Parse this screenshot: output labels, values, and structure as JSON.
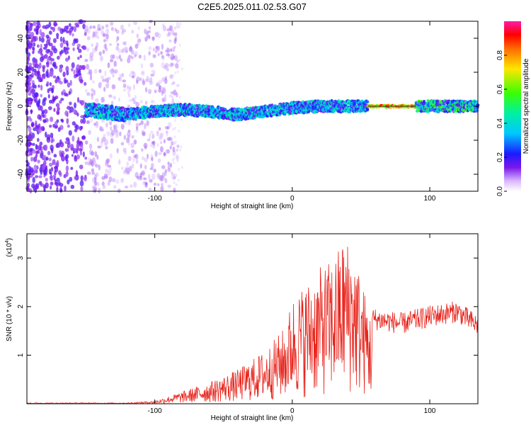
{
  "title": "C2E5.2025.011.02.53.G07",
  "chart_data": [
    {
      "type": "heatmap",
      "xlabel": "Height of straight line (km)",
      "ylabel": "Frequency (Hz)",
      "xlim": [
        -193,
        135
      ],
      "ylim": [
        -50,
        50
      ],
      "xticks": [
        -100,
        0,
        100
      ],
      "yticks": [
        -40,
        -20,
        0,
        20,
        40
      ],
      "colorbar": {
        "label": "Normalized spectral amplitude",
        "range": [
          0,
          1
        ],
        "ticks": [
          "0.0",
          "0.2",
          "0.4",
          "0.6",
          "0.8"
        ]
      },
      "ridge": {
        "note_points_km_hz": [
          [
            -140,
            -3
          ],
          [
            -120,
            -5
          ],
          [
            -100,
            -3
          ],
          [
            -80,
            -2
          ],
          [
            -60,
            -3
          ],
          [
            -40,
            -5
          ],
          [
            -20,
            -3
          ],
          [
            0,
            -1
          ],
          [
            20,
            0
          ],
          [
            40,
            0
          ],
          [
            55,
            0
          ],
          [
            90,
            0
          ],
          [
            135,
            0
          ]
        ]
      }
    },
    {
      "type": "line",
      "xlabel": "Height of straight line (km)",
      "ylabel": "SNR (10 * v/v)",
      "y_multiplier": "(x10",
      "y_multiplier_exp": "4",
      "y_multiplier_close": ")",
      "xlim": [
        -193,
        135
      ],
      "ylim": [
        0,
        3.5
      ],
      "xticks": [
        -100,
        0,
        100
      ],
      "yticks": [
        1,
        2,
        3
      ],
      "color": "#e8231b",
      "envelope_km_snr": [
        [
          -193,
          0.02
        ],
        [
          -120,
          0.02
        ],
        [
          -100,
          0.06
        ],
        [
          -80,
          0.25
        ],
        [
          -60,
          0.45
        ],
        [
          -40,
          0.7
        ],
        [
          -20,
          1.1
        ],
        [
          -5,
          1.6
        ],
        [
          0,
          2.2
        ],
        [
          20,
          2.8
        ],
        [
          30,
          3.0
        ],
        [
          38,
          3.5
        ],
        [
          45,
          3.2
        ],
        [
          50,
          2.6
        ],
        [
          58,
          1.75
        ],
        [
          80,
          1.65
        ],
        [
          100,
          1.8
        ],
        [
          120,
          1.9
        ],
        [
          135,
          1.6
        ]
      ]
    }
  ]
}
